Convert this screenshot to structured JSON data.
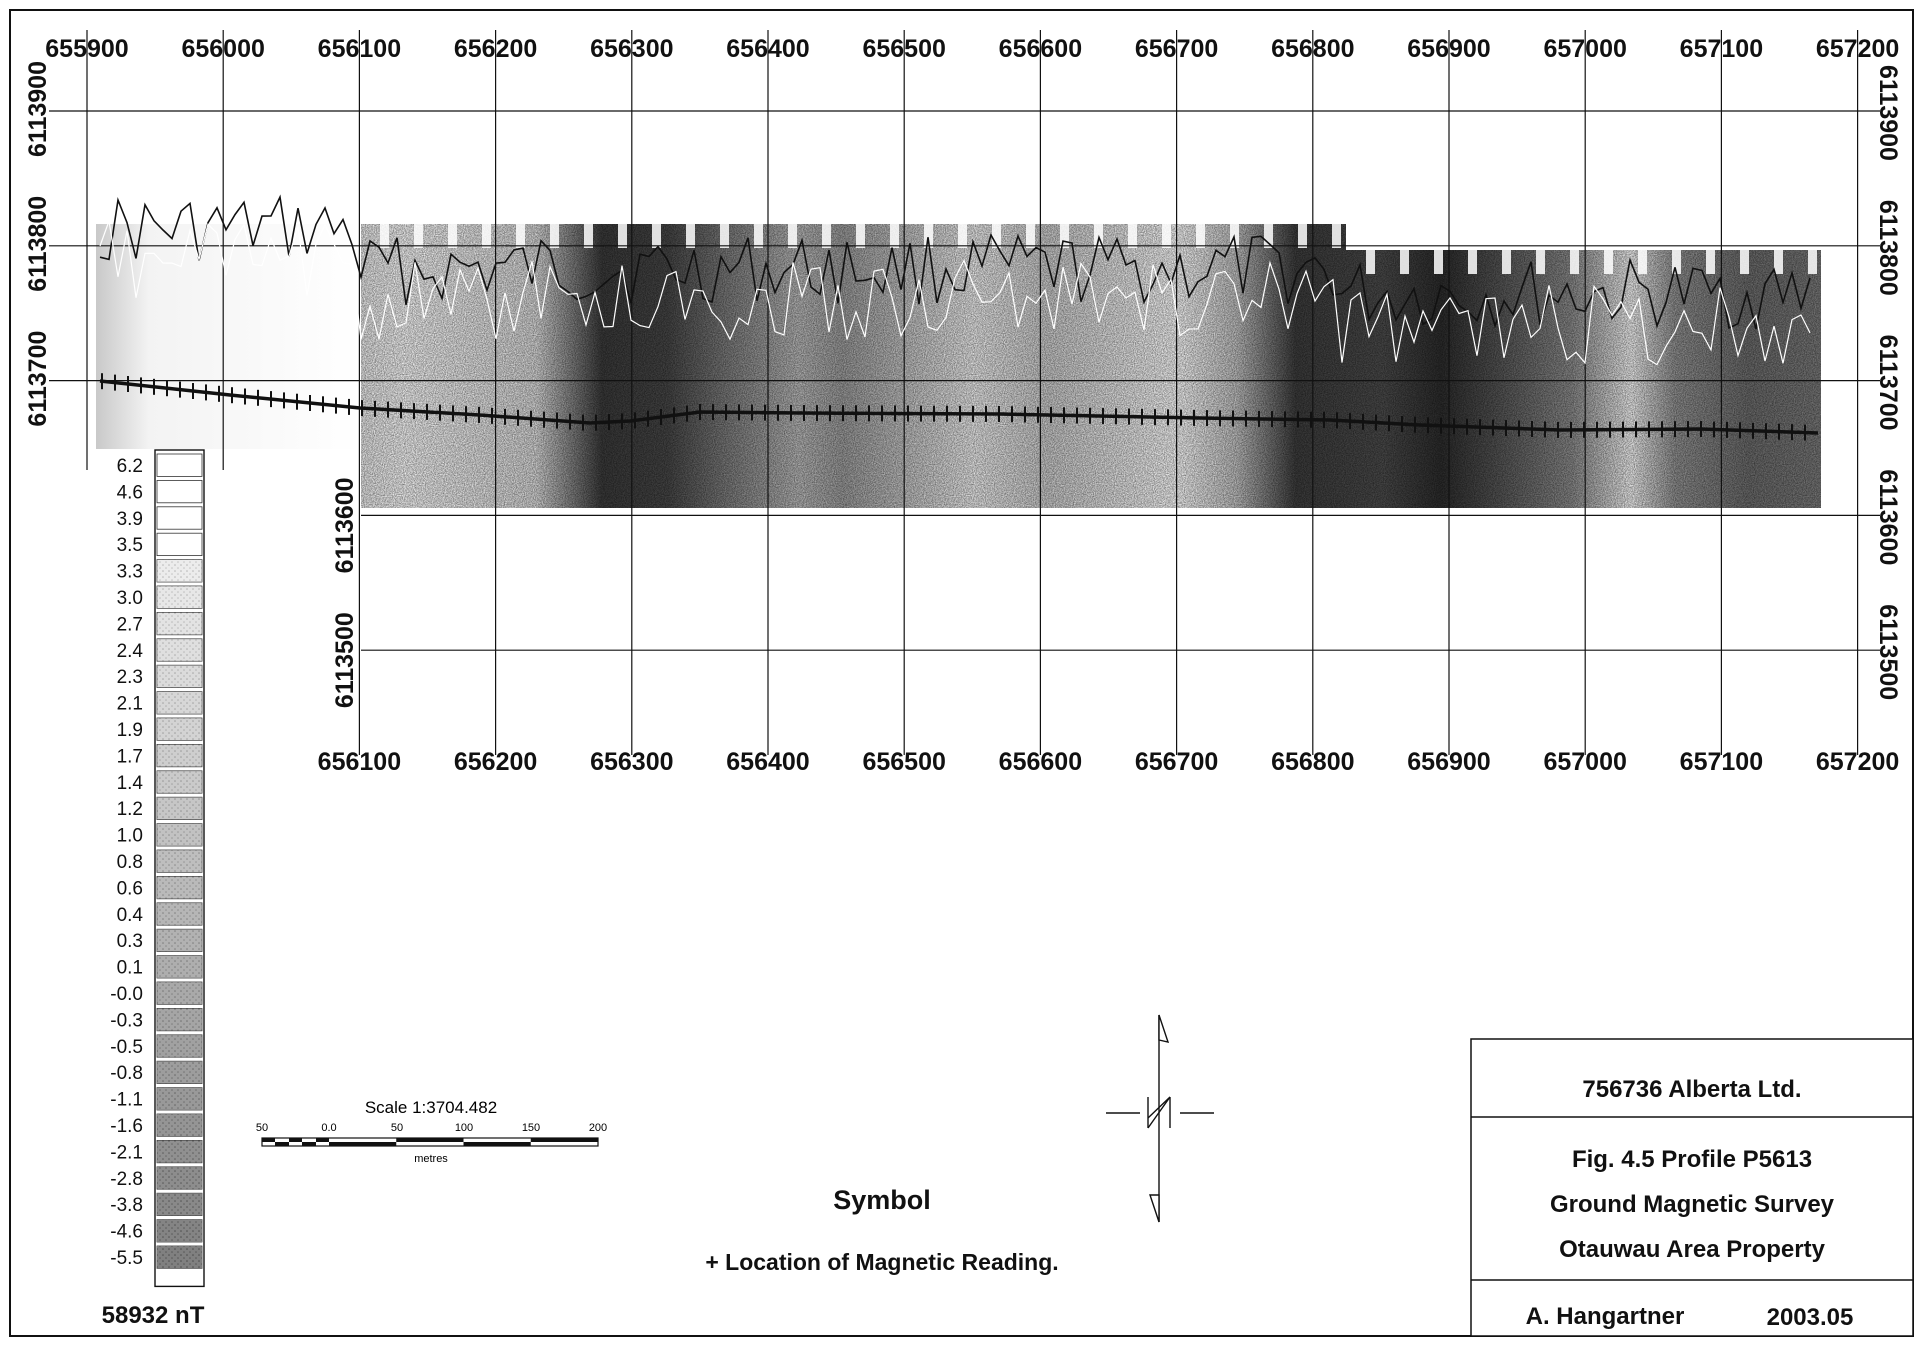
{
  "grid": {
    "top_x_labels": [
      "655900",
      "656000",
      "656100",
      "656200",
      "656300",
      "656400",
      "656500",
      "656600",
      "656700",
      "656800",
      "656900",
      "657000",
      "657100",
      "657200"
    ],
    "bottom_x_labels": [
      "656100",
      "656200",
      "656300",
      "656400",
      "656500",
      "656600",
      "656700",
      "656800",
      "656900",
      "657000",
      "657100",
      "657200"
    ],
    "left_y_labels": [
      "6113900",
      "6113800",
      "6113700"
    ],
    "inner_y_labels": [
      "6113600",
      "6113500"
    ],
    "right_y_labels": [
      "6113900",
      "6113800",
      "6113700",
      "6113600",
      "6113500"
    ]
  },
  "legend": {
    "values": [
      "6.2",
      "4.6",
      "3.9",
      "3.5",
      "3.3",
      "3.0",
      "2.7",
      "2.4",
      "2.3",
      "2.1",
      "1.9",
      "1.7",
      "1.4",
      "1.2",
      "1.0",
      "0.8",
      "0.6",
      "0.4",
      "0.3",
      "0.1",
      "-0.0",
      "-0.3",
      "-0.5",
      "-0.8",
      "-1.1",
      "-1.6",
      "-2.1",
      "-2.8",
      "-3.8",
      "-4.6",
      "-5.5"
    ],
    "base_value": "58932 nT"
  },
  "scale": {
    "title": "Scale 1:3704.482",
    "ticks": [
      "50",
      "0.0",
      "50",
      "100",
      "150",
      "200"
    ],
    "unit": "metres"
  },
  "symbol": {
    "heading": "Symbol",
    "description": "+ Location of Magnetic Reading."
  },
  "title_block": {
    "company": "756736 Alberta Ltd.",
    "figure": "Fig. 4.5  Profile P5613",
    "survey": "Ground Magnetic Survey",
    "property": "Otauwau Area Property",
    "author": "A. Hangartner",
    "date": "2003.05"
  },
  "colors": {
    "ink": "#111111",
    "paper": "#ffffff",
    "shade_dark": "#2a2a2a",
    "shade_light": "#cfcfcf"
  }
}
